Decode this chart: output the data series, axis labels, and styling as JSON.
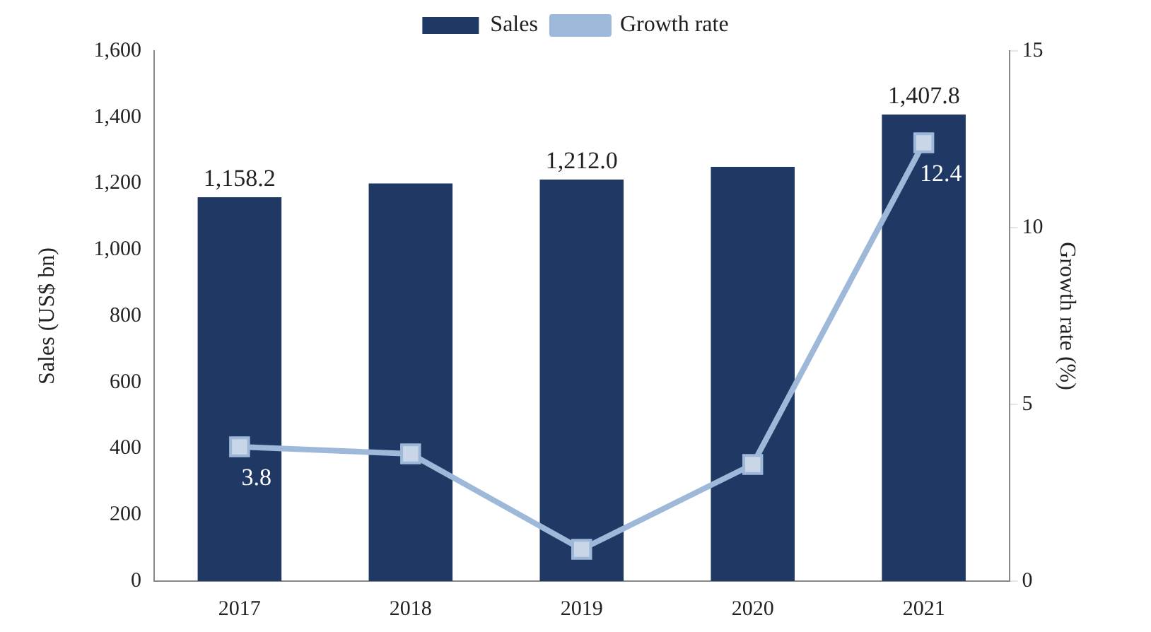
{
  "chart_data": {
    "type": "bar",
    "categories": [
      "2017",
      "2018",
      "2019",
      "2020",
      "2021"
    ],
    "series": [
      {
        "name": "Sales",
        "type": "bar",
        "color": "#1f3864",
        "values": [
          1158.2,
          1200,
          1212.0,
          1250,
          1407.8
        ],
        "value_labels": [
          "1,158.2",
          null,
          "1,212.0",
          null,
          "1,407.8"
        ]
      },
      {
        "name": "Growth rate",
        "type": "line",
        "axis": "y2",
        "color": "#9db8d9",
        "marker": "square",
        "values": [
          3.8,
          3.6,
          0.9,
          3.3,
          12.4
        ],
        "value_labels": [
          "3.8",
          null,
          null,
          null,
          "12.4"
        ]
      }
    ],
    "ylabel": "Sales (US$ bn)",
    "y2label": "Growth rate (%)",
    "ylim": [
      0,
      1600
    ],
    "yticks": [
      0,
      200,
      400,
      600,
      800,
      {
        "value": 1000,
        "label": "1,000"
      },
      {
        "value": 1200,
        "label": "1,200"
      },
      {
        "value": 1400,
        "label": "1,400"
      },
      {
        "value": 1600,
        "label": "1,600"
      }
    ],
    "y2lim": [
      0,
      15
    ],
    "y2ticks": [
      0,
      5,
      10,
      15
    ],
    "grid": false,
    "legend": "top"
  }
}
